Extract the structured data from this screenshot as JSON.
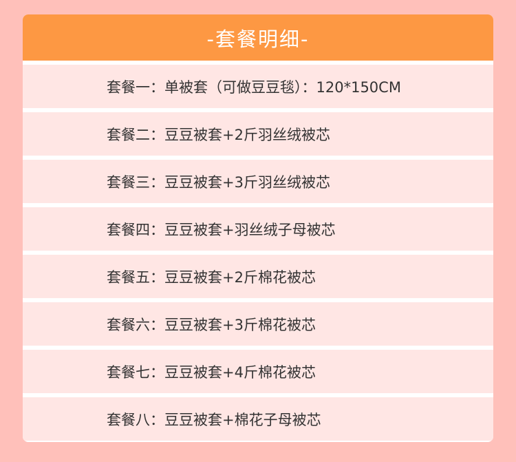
{
  "header": {
    "title": "-套餐明细-"
  },
  "packages": [
    {
      "label": "套餐一：单被套（可做豆豆毯）：120*150CM"
    },
    {
      "label": "套餐二：豆豆被套+2斤羽丝绒被芯"
    },
    {
      "label": "套餐三：豆豆被套+3斤羽丝绒被芯"
    },
    {
      "label": "套餐四：豆豆被套+羽丝绒子母被芯"
    },
    {
      "label": "套餐五：豆豆被套+2斤棉花被芯"
    },
    {
      "label": "套餐六：豆豆被套+3斤棉花被芯"
    },
    {
      "label": "套餐七：豆豆被套+4斤棉花被芯"
    },
    {
      "label": "套餐八：豆豆被套+棉花子母被芯"
    }
  ],
  "colors": {
    "background": "#ffc0ba",
    "header": "#fd9843",
    "row": "#ffe6e4",
    "text": "#333333"
  }
}
